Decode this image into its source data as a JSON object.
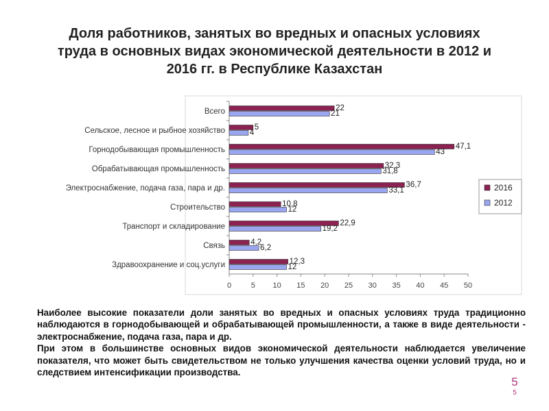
{
  "slide": {
    "title_lines": [
      "Доля работников, занятых во вредных и опасных условиях",
      "труда в основных видах экономической деятельности в 2012 и",
      "2016 гг. в Республике Казахстан"
    ],
    "paragraphs": [
      "Наиболее высокие показатели доли занятых во вредных и опасных условиях труда традиционно наблюдаются в горнодобывающей и обрабатывающей промышленности, а также в виде деятельности - электроснабжение, подача газа, пара и др.",
      "При этом в большинстве основных видов экономической деятельности наблюдается увеличение показателя, что может быть свидетельством не только улучшения качества оценки условий труда, но и следствием интенсификации производства."
    ],
    "page_number": "5",
    "page_number_small": "5"
  },
  "chart_data": {
    "type": "bar",
    "orientation": "horizontal",
    "categories": [
      "Всего",
      "Сельское, лесное и рыбное хозяйство",
      "Горнодобывающая промышленность",
      "Обрабатывающая промышленность",
      "Электроснабжение, подача газа, пара и др.",
      "Строительство",
      "Транспорт и складирование",
      "Связь",
      "Здравоохранение и соц.услуги"
    ],
    "series": [
      {
        "name": "2016",
        "color": "#8b2252",
        "values": [
          22,
          5,
          47.1,
          32.3,
          36.7,
          10.8,
          22.9,
          4.2,
          12.3
        ],
        "labels": [
          "22",
          "5",
          "47,1",
          "32,3",
          "36,7",
          "10,8",
          "22,9",
          "4,2",
          "12,3"
        ]
      },
      {
        "name": "2012",
        "color": "#9aa6f0",
        "values": [
          21,
          4,
          43,
          31.8,
          33.1,
          12,
          19.2,
          6.2,
          12
        ],
        "labels": [
          "21",
          "4",
          "43",
          "31,8",
          "33,1",
          "12",
          "19,2",
          "6,2",
          "12"
        ]
      }
    ],
    "xlim": [
      0,
      50
    ],
    "xticks": [
      "0",
      "5",
      "10",
      "15",
      "20",
      "25",
      "30",
      "35",
      "40",
      "45",
      "50"
    ],
    "grid": false,
    "legend_position": "right"
  }
}
